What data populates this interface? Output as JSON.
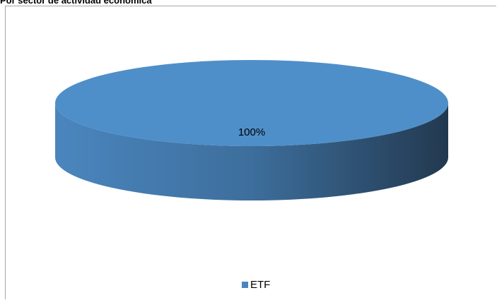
{
  "header": {
    "title": "Por sector de actividad económica"
  },
  "chart_data": {
    "type": "pie",
    "title": "",
    "slices": [
      {
        "label": "ETF",
        "value": 100,
        "data_label": "100%"
      }
    ],
    "style": "3d",
    "legend_position": "bottom",
    "colors": {
      "top": "#4f8fc9",
      "side_light": "#4a86be",
      "side_dark": "#22394f",
      "legend": "#4a86be"
    }
  }
}
